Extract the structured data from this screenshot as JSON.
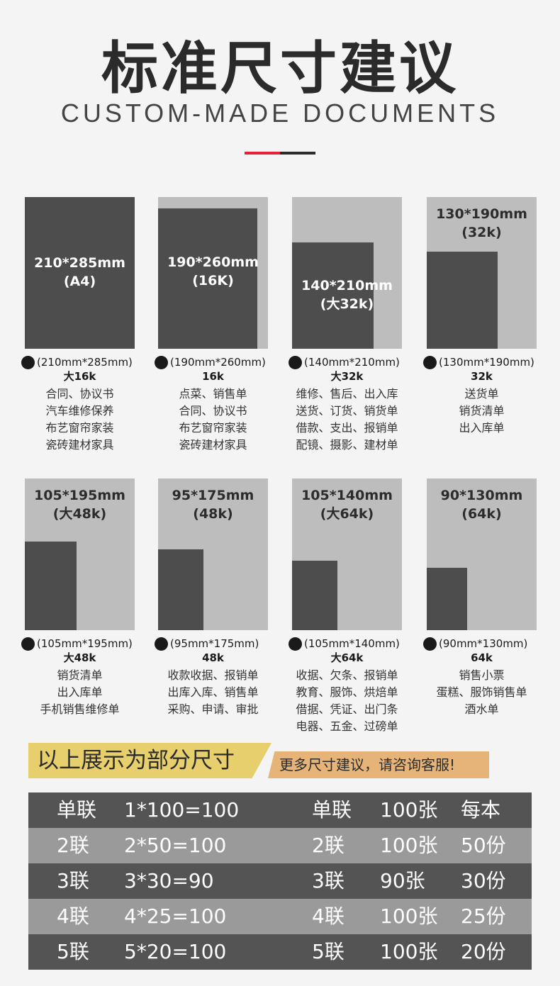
{
  "header": {
    "title": "标准尺寸建议",
    "subtitle": "CUSTOM-MADE DOCUMENTS",
    "accent_colors": [
      "#e8203a",
      "#2b2b2b"
    ]
  },
  "sizes": [
    {
      "label_line1": "210*285mm",
      "label_line2": "(A4)",
      "spec": "(210mm*285mm)",
      "k": "大16k",
      "uses": [
        "合同、协议书",
        "汽车维修保养",
        "布艺窗帘家装",
        "瓷砖建材家具"
      ]
    },
    {
      "label_line1": "190*260mm",
      "label_line2": "(16K)",
      "spec": "(190mm*260mm)",
      "k": "16k",
      "uses": [
        "点菜、销售单",
        "合同、协议书",
        "布艺窗帘家装",
        "瓷砖建材家具"
      ]
    },
    {
      "label_line1": "140*210mm",
      "label_line2": "(大32k)",
      "spec": "(140mm*210mm)",
      "k": "大32k",
      "uses": [
        "维修、售后、出入库",
        "送货、订货、销货单",
        "借款、支出、报销单",
        "配镜、摄影、建材单"
      ]
    },
    {
      "label_line1": "130*190mm",
      "label_line2": "(32k)",
      "spec": "(130mm*190mm)",
      "k": "32k",
      "uses": [
        "送货单",
        "销货清单",
        "出入库单"
      ]
    },
    {
      "label_line1": "105*195mm",
      "label_line2": "(大48k)",
      "spec": "(105mm*195mm)",
      "k": "大48k",
      "uses": [
        "销货清单",
        "出入库单",
        "手机销售维修单"
      ]
    },
    {
      "label_line1": "95*175mm",
      "label_line2": "(48k)",
      "spec": "(95mm*175mm)",
      "k": "48k",
      "uses": [
        "收款收据、报销单",
        "出库入库、销售单",
        "采购、申请、审批"
      ]
    },
    {
      "label_line1": "105*140mm",
      "label_line2": "(大64k)",
      "spec": "(105mm*140mm)",
      "k": "大64k",
      "uses": [
        "收据、欠条、报销单",
        "教育、服饰、烘焙单",
        "借据、凭证、出门条",
        "电器、五金、过磅单"
      ]
    },
    {
      "label_line1": "90*130mm",
      "label_line2": "(64k)",
      "spec": "(90mm*130mm)",
      "k": "64k",
      "uses": [
        "销售小票",
        "蛋糕、服饰销售单",
        "酒水单"
      ]
    }
  ],
  "banner": {
    "text": "以上展示为部分尺寸",
    "cta": "更多尺寸建议，请咨询客服!"
  },
  "table": {
    "row_colors": [
      "#545454",
      "#9a9a9a"
    ],
    "rows": [
      [
        "单联",
        "1*100=100",
        "单联",
        "100张",
        "每本"
      ],
      [
        "2联",
        "2*50=100",
        "2联",
        "100张",
        "50份"
      ],
      [
        "3联",
        "3*30=90",
        "3联",
        "90张",
        "30份"
      ],
      [
        "4联",
        "4*25=100",
        "4联",
        "100张",
        "25份"
      ],
      [
        "5联",
        "5*20=100",
        "5联",
        "100张",
        "20份"
      ]
    ]
  }
}
